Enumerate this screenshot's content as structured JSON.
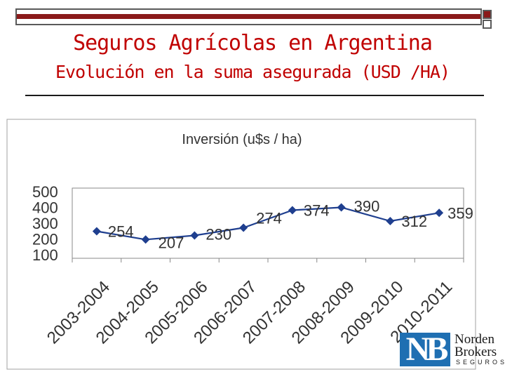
{
  "slide": {
    "title": "Seguros Agrícolas en Argentina",
    "subtitle": "Evolución en la suma asegurada (USD /HA)",
    "colors": {
      "title": "#c00000",
      "accent_bar": "#8b1a1a",
      "series": "#1f3f8f"
    }
  },
  "logo": {
    "name_line1": "Norden",
    "name_line2": "Brokers",
    "name_line3": "SEGUROS",
    "mark": "NB"
  },
  "chart_data": {
    "type": "line",
    "title": "Inversión (u$s / ha)",
    "categories": [
      "2003-2004",
      "2004-2005",
      "2005-2006",
      "2006-2007",
      "2007-2008",
      "2008-2009",
      "2009-2010",
      "2010-2011"
    ],
    "series": [
      {
        "values": [
          254,
          207,
          230,
          274,
          374,
          390,
          312,
          359
        ],
        "color": "#1f3f8f",
        "marker": "diamond"
      }
    ],
    "data_labels": [
      "254",
      "207",
      "230",
      "274",
      "374",
      "390",
      "312",
      "359"
    ],
    "yticks": [
      "500",
      "400",
      "300",
      "200",
      "100"
    ],
    "ylim": [
      100,
      500
    ],
    "xlabel": "",
    "ylabel": "",
    "grid": false,
    "legend": "none"
  }
}
